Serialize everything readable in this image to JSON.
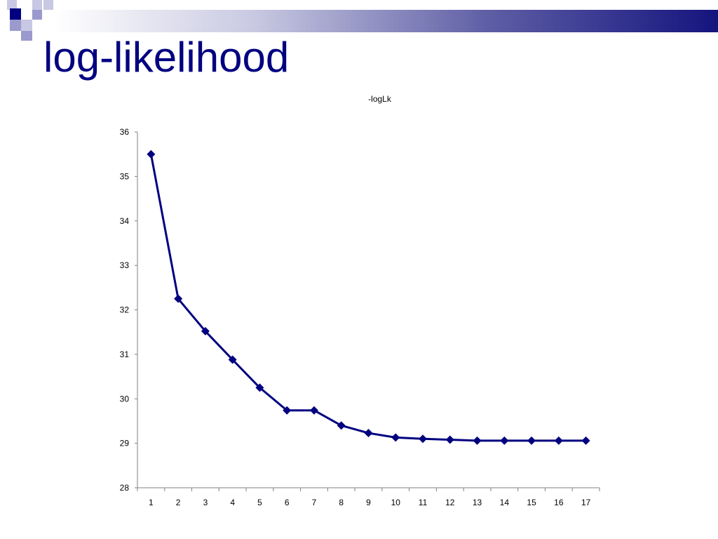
{
  "slide": {
    "title": "log-likelihood"
  },
  "colors": {
    "series": "#000080",
    "title": "#000080",
    "axis": "#808080"
  },
  "chart_data": {
    "type": "line",
    "title": "-logLk",
    "xlabel": "",
    "ylabel": "",
    "categories": [
      "1",
      "2",
      "3",
      "4",
      "5",
      "6",
      "7",
      "8",
      "9",
      "10",
      "11",
      "12",
      "13",
      "14",
      "15",
      "16",
      "17"
    ],
    "series": [
      {
        "values": [
          35.5,
          32.25,
          31.52,
          30.88,
          30.25,
          29.74,
          29.74,
          29.4,
          29.23,
          29.13,
          29.1,
          29.08,
          29.06,
          29.06,
          29.06,
          29.06,
          29.06
        ]
      }
    ],
    "ylim": [
      28,
      36
    ],
    "yticks": [
      "28",
      "29",
      "30",
      "31",
      "32",
      "33",
      "34",
      "35",
      "36"
    ],
    "grid": false,
    "legend": "none",
    "marker": "diamond"
  }
}
